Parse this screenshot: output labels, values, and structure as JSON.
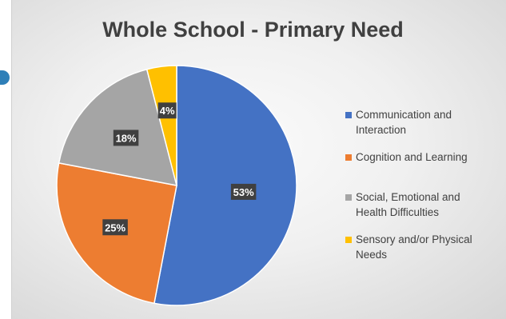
{
  "chart_data": {
    "type": "pie",
    "title": "Whole School - Primary Need",
    "categories": [
      "Communication and Interaction",
      "Cognition and Learning",
      "Social, Emotional and Health Difficulties",
      "Sensory and/or Physical Needs"
    ],
    "values": [
      53,
      25,
      18,
      4
    ],
    "data_labels": [
      "53%",
      "25%",
      "18%",
      "4%"
    ],
    "colors": [
      "#4472c4",
      "#ed7d31",
      "#a5a5a5",
      "#ffc000"
    ],
    "legend_position": "right",
    "legend_entries": [
      {
        "line1": "Communication and",
        "line2": "Interaction"
      },
      {
        "line1": "Cognition and Learning",
        "line2": ""
      },
      {
        "line1": "Social, Emotional and",
        "line2": "Health Difficulties"
      },
      {
        "line1": "Sensory and/or Physical",
        "line2": "Needs"
      }
    ]
  }
}
